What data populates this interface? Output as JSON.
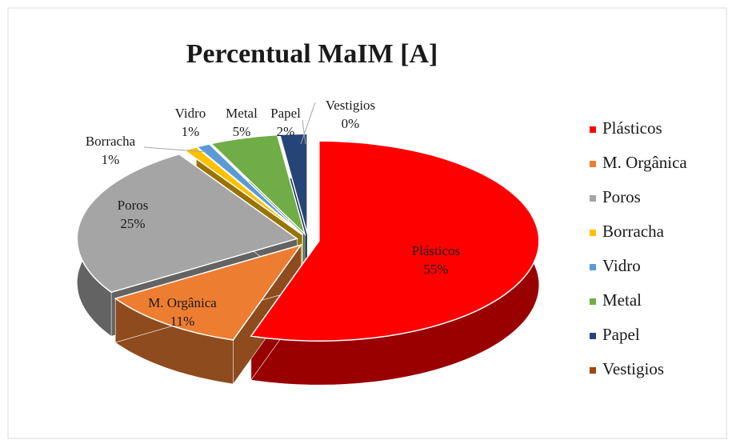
{
  "chart_data": {
    "type": "pie",
    "title": "Percentual MaIM [A]",
    "categories": [
      "Plásticos",
      "M. Orgânica",
      "Poros",
      "Borracha",
      "Vidro",
      "Metal",
      "Papel",
      "Vestigios"
    ],
    "values": [
      55,
      11,
      25,
      1,
      1,
      5,
      2,
      0
    ],
    "value_labels": [
      "55%",
      "11%",
      "25%",
      "1%",
      "1%",
      "5%",
      "2%",
      "0%"
    ],
    "colors": [
      "#ff0000",
      "#ed7d31",
      "#a5a5a5",
      "#ffc000",
      "#5b9bd5",
      "#70ad47",
      "#264478",
      "#9e480e"
    ],
    "legend": "right"
  }
}
